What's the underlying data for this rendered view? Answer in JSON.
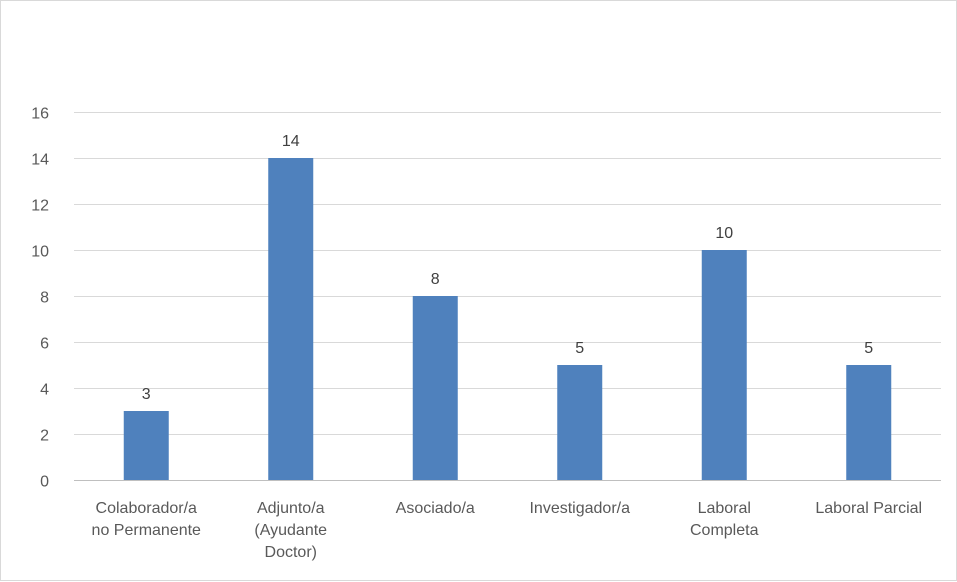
{
  "chart_data": {
    "type": "bar",
    "title": "",
    "xlabel": "",
    "ylabel": "",
    "categories": [
      [
        "Colaborador/a",
        "no Permanente"
      ],
      [
        "Adjunto/a",
        "(Ayudante",
        "Doctor)"
      ],
      [
        "Asociado/a"
      ],
      [
        "Investigador/a"
      ],
      [
        "Laboral",
        "Completa"
      ],
      [
        "Laboral Parcial"
      ]
    ],
    "values": [
      3,
      14,
      8,
      5,
      10,
      5
    ],
    "ylim": [
      0,
      16
    ],
    "yticks": [
      0,
      2,
      4,
      6,
      8,
      10,
      12,
      14,
      16
    ],
    "grid": true,
    "legend": "none",
    "colors": {
      "bar": "#4f81bd",
      "gridline": "#d9d9d9",
      "axis": "#bfbfbf"
    }
  }
}
